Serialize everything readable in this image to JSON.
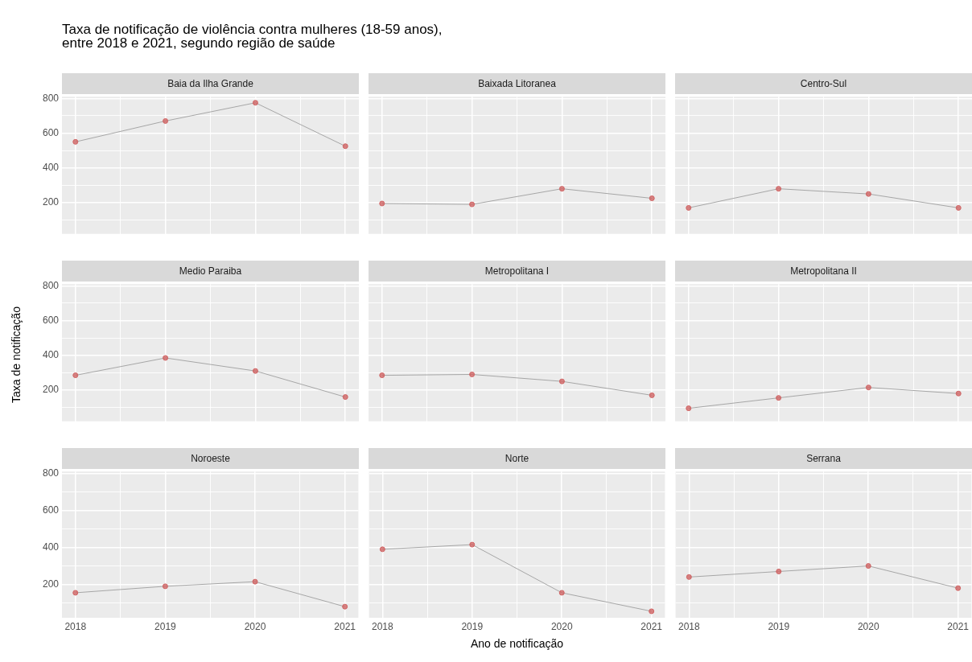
{
  "chart_data": [
    {
      "type": "line",
      "title": "Baia da Ilha Grande",
      "annotations": [
        "Taxa de notificação de violência contra mulheres (18-59 anos),\nentre 2018 e 2021, segundo região de saúde"
      ],
      "x": [
        2018,
        2019,
        2020,
        2021
      ],
      "xlim": [
        2017.85,
        2021.15
      ],
      "xticks": [
        2018,
        {
          "value": 2018.5,
          "label": null
        },
        2019,
        {
          "value": 2019.5,
          "label": null
        },
        2020,
        {
          "value": 2020.5,
          "label": null
        },
        2021
      ],
      "ylim": [
        20,
        810
      ],
      "yticks": [
        {
          "value": 100,
          "label": null
        },
        200,
        {
          "value": 300,
          "label": null
        },
        400,
        {
          "value": 500,
          "label": null
        },
        600,
        {
          "value": 700,
          "label": null
        },
        800
      ],
      "grid": true,
      "tick_labels": "y",
      "series": [
        {
          "type": "line",
          "marker": "none",
          "color": "#a6a6a6",
          "values": [
            550,
            670,
            775,
            525
          ]
        },
        {
          "type": "scatter",
          "marker": "circle",
          "color": "#d06464",
          "values": [
            550,
            670,
            775,
            525
          ]
        }
      ]
    },
    {
      "type": "line",
      "title": "Baixada Litoranea",
      "x": [
        2018,
        2019,
        2020,
        2021
      ],
      "xlim": [
        2017.85,
        2021.15
      ],
      "xticks": [
        2018,
        {
          "value": 2018.5,
          "label": null
        },
        2019,
        {
          "value": 2019.5,
          "label": null
        },
        2020,
        {
          "value": 2020.5,
          "label": null
        },
        2021
      ],
      "ylim": [
        20,
        810
      ],
      "yticks": [
        {
          "value": 100,
          "label": null
        },
        200,
        {
          "value": 300,
          "label": null
        },
        400,
        {
          "value": 500,
          "label": null
        },
        600,
        {
          "value": 700,
          "label": null
        },
        800
      ],
      "grid": true,
      "tick_labels": false,
      "series": [
        {
          "type": "line",
          "marker": "none",
          "color": "#a6a6a6",
          "values": [
            195,
            190,
            280,
            225
          ]
        },
        {
          "type": "scatter",
          "marker": "circle",
          "color": "#d06464",
          "values": [
            195,
            190,
            280,
            225
          ]
        }
      ]
    },
    {
      "type": "line",
      "title": "Centro-Sul",
      "x": [
        2018,
        2019,
        2020,
        2021
      ],
      "xlim": [
        2017.85,
        2021.15
      ],
      "xticks": [
        2018,
        {
          "value": 2018.5,
          "label": null
        },
        2019,
        {
          "value": 2019.5,
          "label": null
        },
        2020,
        {
          "value": 2020.5,
          "label": null
        },
        2021
      ],
      "ylim": [
        20,
        810
      ],
      "yticks": [
        {
          "value": 100,
          "label": null
        },
        200,
        {
          "value": 300,
          "label": null
        },
        400,
        {
          "value": 500,
          "label": null
        },
        600,
        {
          "value": 700,
          "label": null
        },
        800
      ],
      "grid": true,
      "tick_labels": false,
      "series": [
        {
          "type": "line",
          "marker": "none",
          "color": "#a6a6a6",
          "values": [
            170,
            280,
            250,
            170
          ]
        },
        {
          "type": "scatter",
          "marker": "circle",
          "color": "#d06464",
          "values": [
            170,
            280,
            250,
            170
          ]
        }
      ]
    },
    {
      "type": "line",
      "title": "Medio Paraiba",
      "ylabel": "Taxa de notificação",
      "x": [
        2018,
        2019,
        2020,
        2021
      ],
      "xlim": [
        2017.85,
        2021.15
      ],
      "xticks": [
        2018,
        {
          "value": 2018.5,
          "label": null
        },
        2019,
        {
          "value": 2019.5,
          "label": null
        },
        2020,
        {
          "value": 2020.5,
          "label": null
        },
        2021
      ],
      "ylim": [
        20,
        810
      ],
      "yticks": [
        {
          "value": 100,
          "label": null
        },
        200,
        {
          "value": 300,
          "label": null
        },
        400,
        {
          "value": 500,
          "label": null
        },
        600,
        {
          "value": 700,
          "label": null
        },
        800
      ],
      "grid": true,
      "tick_labels": "y",
      "series": [
        {
          "type": "line",
          "marker": "none",
          "color": "#a6a6a6",
          "values": [
            285,
            385,
            310,
            160
          ]
        },
        {
          "type": "scatter",
          "marker": "circle",
          "color": "#d06464",
          "values": [
            285,
            385,
            310,
            160
          ]
        }
      ]
    },
    {
      "type": "line",
      "title": "Metropolitana I",
      "x": [
        2018,
        2019,
        2020,
        2021
      ],
      "xlim": [
        2017.85,
        2021.15
      ],
      "xticks": [
        2018,
        {
          "value": 2018.5,
          "label": null
        },
        2019,
        {
          "value": 2019.5,
          "label": null
        },
        2020,
        {
          "value": 2020.5,
          "label": null
        },
        2021
      ],
      "ylim": [
        20,
        810
      ],
      "yticks": [
        {
          "value": 100,
          "label": null
        },
        200,
        {
          "value": 300,
          "label": null
        },
        400,
        {
          "value": 500,
          "label": null
        },
        600,
        {
          "value": 700,
          "label": null
        },
        800
      ],
      "grid": true,
      "tick_labels": false,
      "series": [
        {
          "type": "line",
          "marker": "none",
          "color": "#a6a6a6",
          "values": [
            285,
            290,
            250,
            170
          ]
        },
        {
          "type": "scatter",
          "marker": "circle",
          "color": "#d06464",
          "values": [
            285,
            290,
            250,
            170
          ]
        }
      ]
    },
    {
      "type": "line",
      "title": "Metropolitana II",
      "x": [
        2018,
        2019,
        2020,
        2021
      ],
      "xlim": [
        2017.85,
        2021.15
      ],
      "xticks": [
        2018,
        {
          "value": 2018.5,
          "label": null
        },
        2019,
        {
          "value": 2019.5,
          "label": null
        },
        2020,
        {
          "value": 2020.5,
          "label": null
        },
        2021
      ],
      "ylim": [
        20,
        810
      ],
      "yticks": [
        {
          "value": 100,
          "label": null
        },
        200,
        {
          "value": 300,
          "label": null
        },
        400,
        {
          "value": 500,
          "label": null
        },
        600,
        {
          "value": 700,
          "label": null
        },
        800
      ],
      "grid": true,
      "tick_labels": false,
      "series": [
        {
          "type": "line",
          "marker": "none",
          "color": "#a6a6a6",
          "values": [
            95,
            155,
            215,
            180
          ]
        },
        {
          "type": "scatter",
          "marker": "circle",
          "color": "#d06464",
          "values": [
            95,
            155,
            215,
            180
          ]
        }
      ]
    },
    {
      "type": "line",
      "title": "Noroeste",
      "x": [
        2018,
        2019,
        2020,
        2021
      ],
      "xlim": [
        2017.85,
        2021.15
      ],
      "xticks": [
        2018,
        {
          "value": 2018.5,
          "label": null
        },
        2019,
        {
          "value": 2019.5,
          "label": null
        },
        2020,
        {
          "value": 2020.5,
          "label": null
        },
        2021
      ],
      "ylim": [
        20,
        810
      ],
      "yticks": [
        {
          "value": 100,
          "label": null
        },
        200,
        {
          "value": 300,
          "label": null
        },
        400,
        {
          "value": 500,
          "label": null
        },
        600,
        {
          "value": 700,
          "label": null
        },
        800
      ],
      "grid": true,
      "series": [
        {
          "type": "line",
          "marker": "none",
          "color": "#a6a6a6",
          "values": [
            155,
            190,
            215,
            80
          ]
        },
        {
          "type": "scatter",
          "marker": "circle",
          "color": "#d06464",
          "values": [
            155,
            190,
            215,
            80
          ]
        }
      ]
    },
    {
      "type": "line",
      "title": "Norte",
      "xlabel": "Ano de notificação",
      "x": [
        2018,
        2019,
        2020,
        2021
      ],
      "xlim": [
        2017.85,
        2021.15
      ],
      "xticks": [
        2018,
        {
          "value": 2018.5,
          "label": null
        },
        2019,
        {
          "value": 2019.5,
          "label": null
        },
        2020,
        {
          "value": 2020.5,
          "label": null
        },
        2021
      ],
      "ylim": [
        20,
        810
      ],
      "yticks": [
        {
          "value": 100,
          "label": null
        },
        200,
        {
          "value": 300,
          "label": null
        },
        400,
        {
          "value": 500,
          "label": null
        },
        600,
        {
          "value": 700,
          "label": null
        },
        800
      ],
      "grid": true,
      "tick_labels": "x",
      "series": [
        {
          "type": "line",
          "marker": "none",
          "color": "#a6a6a6",
          "values": [
            390,
            415,
            155,
            55
          ]
        },
        {
          "type": "scatter",
          "marker": "circle",
          "color": "#d06464",
          "values": [
            390,
            415,
            155,
            55
          ]
        }
      ]
    },
    {
      "type": "line",
      "title": "Serrana",
      "x": [
        2018,
        2019,
        2020,
        2021
      ],
      "xlim": [
        2017.85,
        2021.15
      ],
      "xticks": [
        2018,
        {
          "value": 2018.5,
          "label": null
        },
        2019,
        {
          "value": 2019.5,
          "label": null
        },
        2020,
        {
          "value": 2020.5,
          "label": null
        },
        2021
      ],
      "ylim": [
        20,
        810
      ],
      "yticks": [
        {
          "value": 100,
          "label": null
        },
        200,
        {
          "value": 300,
          "label": null
        },
        400,
        {
          "value": 500,
          "label": null
        },
        600,
        {
          "value": 700,
          "label": null
        },
        800
      ],
      "grid": true,
      "tick_labels": "x",
      "series": [
        {
          "type": "line",
          "marker": "none",
          "color": "#a6a6a6",
          "values": [
            240,
            270,
            300,
            180
          ]
        },
        {
          "type": "scatter",
          "marker": "circle",
          "color": "#d06464",
          "values": [
            240,
            270,
            300,
            180
          ]
        }
      ]
    }
  ]
}
